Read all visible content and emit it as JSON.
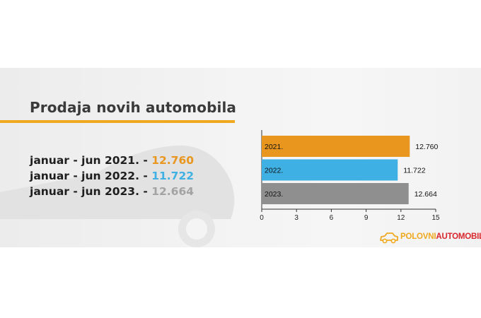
{
  "title": "Prodaja novih automobila",
  "stats": [
    {
      "label": "januar - jun 2021. - ",
      "value": "12.760",
      "color": "#e9961f"
    },
    {
      "label": "januar - jun 2022. - ",
      "value": "11.722",
      "color": "#3fb0e3"
    },
    {
      "label": "januar - jun 2023. - ",
      "value": "12.664",
      "color": "#a3a3a3"
    }
  ],
  "chart_data": {
    "type": "bar",
    "orientation": "horizontal",
    "categories": [
      "2021.",
      "2022.",
      "2023."
    ],
    "values": [
      12.76,
      11.722,
      12.664
    ],
    "value_labels": [
      "12.760",
      "11.722",
      "12.664"
    ],
    "colors": [
      "#e9961f",
      "#3fb0e3",
      "#8f8f8f"
    ],
    "xlim": [
      0,
      15
    ],
    "xticks": [
      "0",
      "3",
      "6",
      "9",
      "12",
      "15"
    ],
    "grid": false,
    "legend": "none"
  },
  "logo": {
    "part1": "POLOVNI",
    "part2": "AUTOMOBILI",
    "color1": "#f0a81e",
    "color2": "#d9262c"
  }
}
